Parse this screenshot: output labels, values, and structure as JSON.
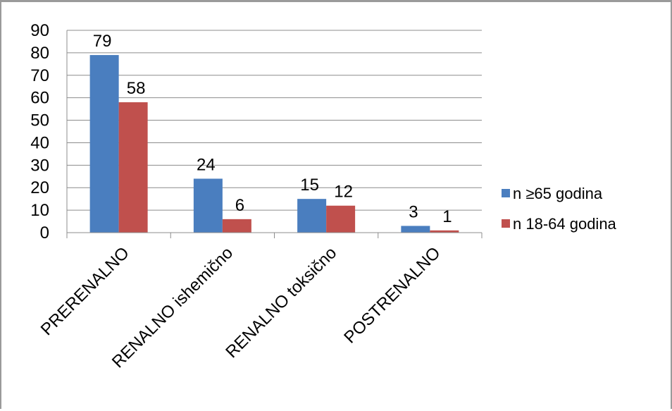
{
  "chart_data": {
    "type": "bar",
    "title": "",
    "xlabel": "",
    "ylabel": "",
    "ylim": [
      0,
      90
    ],
    "yticks": [
      0,
      10,
      20,
      30,
      40,
      50,
      60,
      70,
      80,
      90
    ],
    "grid": true,
    "legend_position": "right",
    "categories": [
      "PRERENALNO",
      "RENALNO ishemično",
      "RENALNO toksično",
      "POSTRENALNO"
    ],
    "series": [
      {
        "name": "n ≥65 godina",
        "color": "#4a7ebf",
        "values": [
          79,
          24,
          15,
          3
        ]
      },
      {
        "name": "n 18-64 godina",
        "color": "#c0504d",
        "values": [
          58,
          6,
          12,
          1
        ]
      }
    ]
  }
}
